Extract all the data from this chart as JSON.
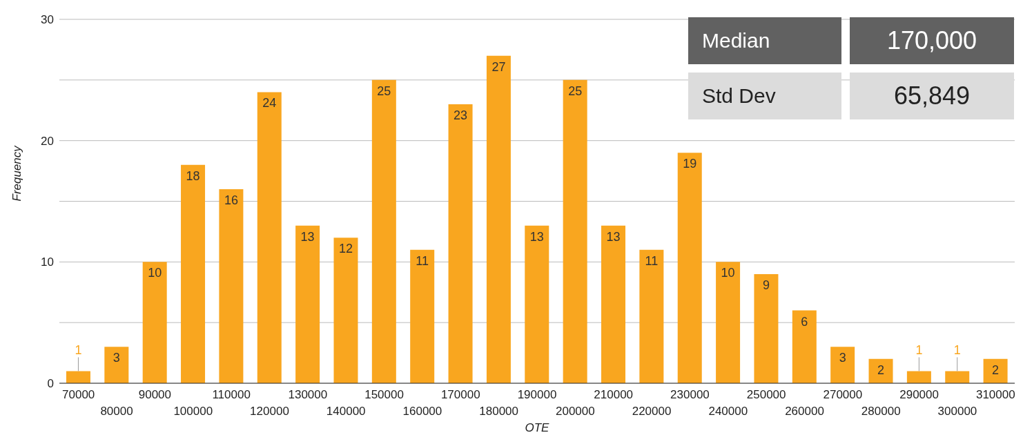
{
  "chart_data": {
    "type": "bar",
    "xlabel": "OTE",
    "ylabel": "Frequency",
    "categories": [
      "70000",
      "80000",
      "90000",
      "100000",
      "110000",
      "120000",
      "130000",
      "140000",
      "150000",
      "160000",
      "170000",
      "180000",
      "190000",
      "200000",
      "210000",
      "220000",
      "230000",
      "240000",
      "250000",
      "260000",
      "270000",
      "280000",
      "290000",
      "300000",
      "310000"
    ],
    "values": [
      1,
      3,
      10,
      18,
      16,
      24,
      13,
      12,
      25,
      11,
      23,
      27,
      13,
      25,
      13,
      11,
      19,
      10,
      9,
      6,
      3,
      2,
      1,
      1,
      2
    ],
    "color": "#f9a61f",
    "data_labels": true,
    "ylim": [
      0,
      30
    ],
    "yticks": [
      0,
      {
        "value": 5,
        "label": null
      },
      10,
      {
        "value": 15,
        "label": null
      },
      20,
      {
        "value": 25,
        "label": null
      },
      30
    ],
    "grid": "y",
    "legend": false,
    "annotations": [
      "Median",
      "170,000",
      "Std Dev",
      "65,849"
    ]
  }
}
